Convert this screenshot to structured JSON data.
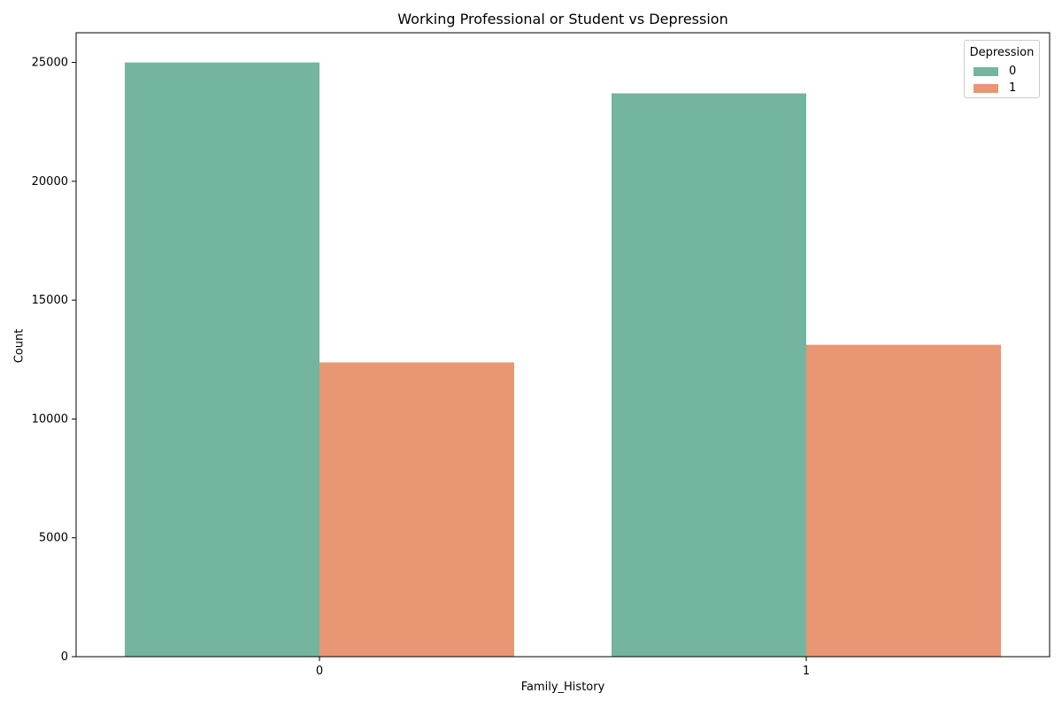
{
  "chart_data": {
    "type": "bar",
    "title": "Working Professional or Student vs Depression",
    "xlabel": "Family_History",
    "ylabel": "Count",
    "categories": [
      "0",
      "1"
    ],
    "ylim": [
      0,
      26250
    ],
    "yticks": [
      0,
      5000,
      10000,
      15000,
      20000,
      25000
    ],
    "grid": false,
    "legend": {
      "title": "Depression",
      "placement": "top-right"
    },
    "series": [
      {
        "name": "0",
        "color": "#74b59f",
        "values": [
          25000,
          23700
        ]
      },
      {
        "name": "1",
        "color": "#e99674",
        "values": [
          12380,
          13120
        ]
      }
    ]
  }
}
